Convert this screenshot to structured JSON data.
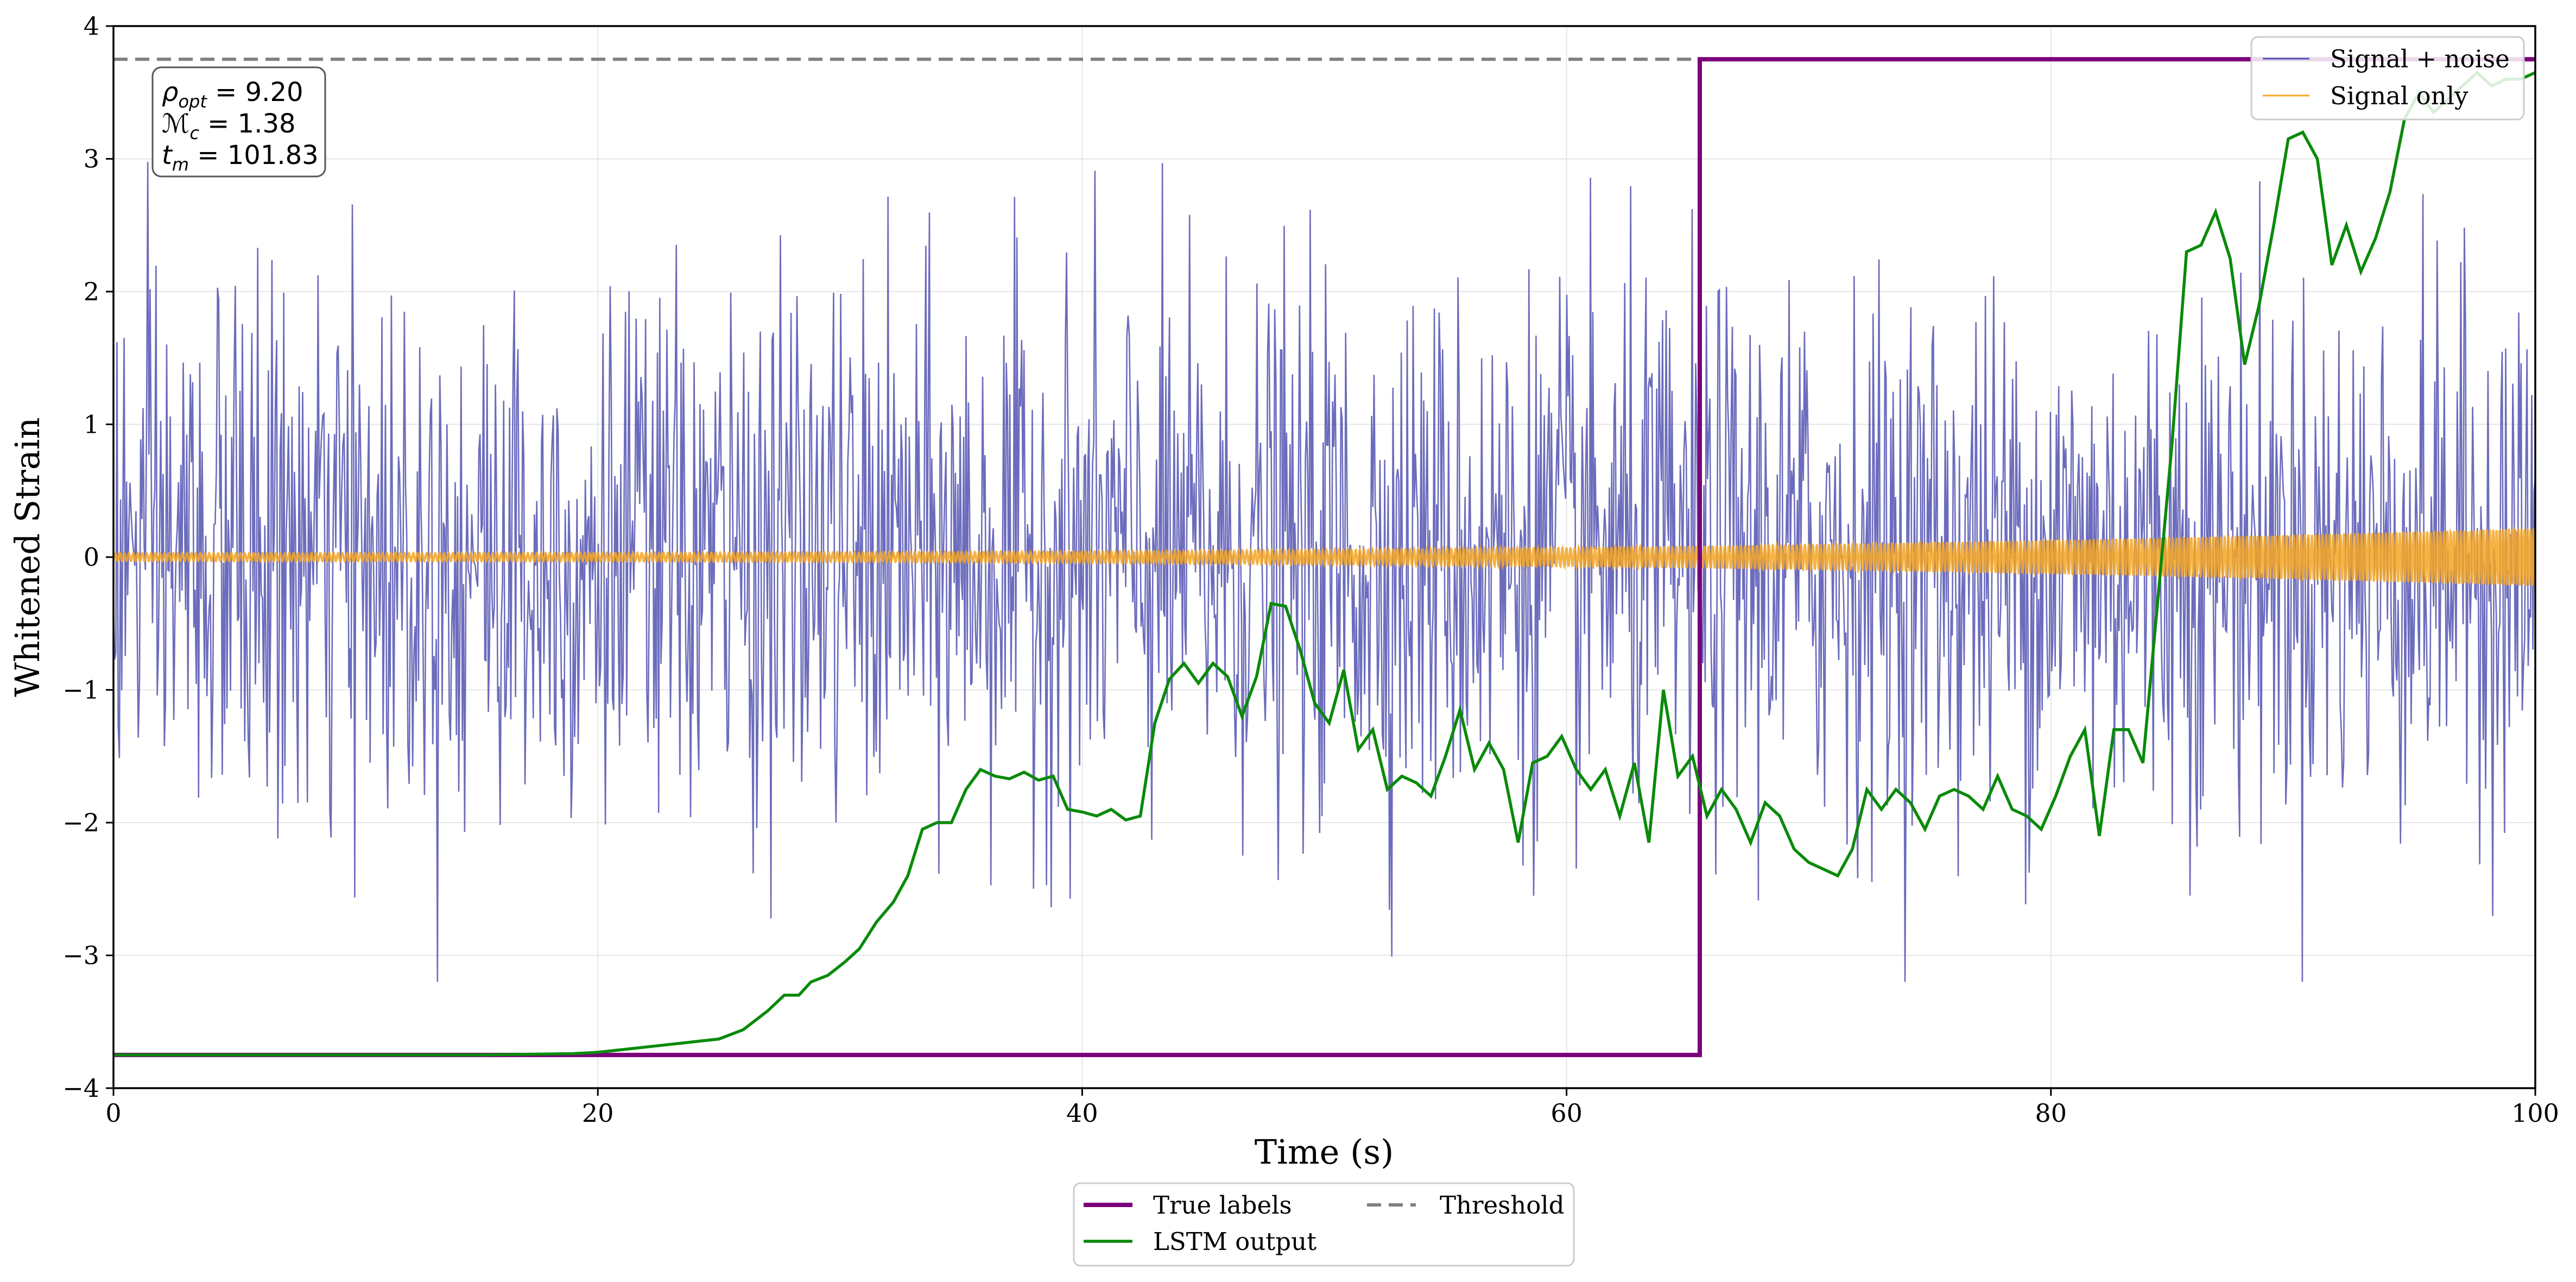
{
  "chart_data": {
    "type": "line",
    "title": "",
    "xlabel": "Time (s)",
    "ylabel": "Whitened Strain",
    "xlim": [
      0,
      100
    ],
    "ylim": [
      -4,
      4
    ],
    "xticks": [
      0,
      20,
      40,
      60,
      80,
      100
    ],
    "yticks": [
      -4,
      -3,
      -2,
      -1,
      0,
      1,
      2,
      3,
      4
    ],
    "xtick_labels": [
      "0",
      "20",
      "40",
      "60",
      "80",
      "100"
    ],
    "ytick_labels": [
      "−4",
      "−3",
      "−2",
      "−1",
      "0",
      "1",
      "2",
      "3",
      "4"
    ],
    "grid": true,
    "threshold": 3.75,
    "info_box": {
      "rho_sym": "ρ",
      "rho_sub": "opt",
      "rho_val": " = 9.20",
      "mc_sym": "ℳ",
      "mc_sub": "c",
      "mc_val": " = 1.38",
      "tm_sym": "t",
      "tm_sub": "m",
      "tm_val": " = 101.83"
    },
    "series": [
      {
        "name": "Signal + noise",
        "color": "#5252b2",
        "description": "Gaussian-like whitened noise, std ~1, range about -3.2 to 4.0",
        "std": 1.0,
        "samples": 2048
      },
      {
        "name": "Signal only",
        "color": "#f5a623",
        "description": "Chirp signal, amplitude grows from ~0.03 to ~0.22, frequency decreasing toward t=100",
        "amp_start": 0.03,
        "amp_end": 0.22
      },
      {
        "name": "True labels",
        "color": "#7b007b",
        "x": [
          0,
          65.5,
          65.5,
          100
        ],
        "y": [
          -3.75,
          -3.75,
          3.75,
          3.75
        ]
      },
      {
        "name": "LSTM output",
        "color": "#0a8a0a",
        "x": [
          0,
          5,
          10,
          15,
          17,
          19,
          20,
          21,
          22,
          23,
          24,
          25,
          26,
          27,
          27.7,
          28.3,
          28.8,
          29.5,
          30.2,
          30.8,
          31.5,
          32.2,
          32.8,
          33.4,
          34,
          34.6,
          35.2,
          35.8,
          36.4,
          37,
          37.6,
          38.2,
          38.8,
          39.4,
          40,
          40.6,
          41.2,
          41.8,
          42.4,
          43,
          43.6,
          44.2,
          44.8,
          45.4,
          46,
          46.6,
          47.2,
          47.8,
          48.4,
          49,
          49.6,
          50.2,
          50.8,
          51.4,
          52,
          52.6,
          53.2,
          53.8,
          54.4,
          55,
          55.6,
          56.2,
          56.8,
          57.4,
          58,
          58.6,
          59.2,
          59.8,
          60.4,
          61,
          61.6,
          62.2,
          62.8,
          63.4,
          64,
          64.6,
          65.2,
          65.8,
          66.4,
          67,
          67.6,
          68.2,
          68.8,
          69.4,
          70,
          70.6,
          71.2,
          71.8,
          72.4,
          73,
          73.6,
          74.2,
          74.8,
          75.4,
          76,
          76.6,
          77.2,
          77.8,
          78.4,
          79,
          79.6,
          80.2,
          80.8,
          81.4,
          82,
          82.6,
          83.2,
          83.8,
          84.4,
          85,
          85.6,
          86.2,
          86.8,
          87.4,
          88,
          88.6,
          89.2,
          89.8,
          90.4,
          91,
          91.6,
          92.2,
          92.8,
          93.4,
          94,
          94.6,
          95.2,
          95.8,
          96.4,
          97,
          97.6,
          98.2,
          98.8,
          99.4,
          100
        ],
        "y": [
          -3.75,
          -3.75,
          -3.75,
          -3.75,
          -3.745,
          -3.74,
          -3.73,
          -3.71,
          -3.69,
          -3.67,
          -3.65,
          -3.63,
          -3.56,
          -3.42,
          -3.3,
          -3.3,
          -3.2,
          -3.15,
          -3.05,
          -2.95,
          -2.75,
          -2.6,
          -2.4,
          -2.05,
          -2.0,
          -2.0,
          -1.75,
          -1.6,
          -1.65,
          -1.67,
          -1.62,
          -1.68,
          -1.65,
          -1.9,
          -1.92,
          -1.95,
          -1.9,
          -1.98,
          -1.95,
          -1.25,
          -0.92,
          -0.8,
          -0.95,
          -0.8,
          -0.9,
          -1.2,
          -0.9,
          -0.35,
          -0.37,
          -0.7,
          -1.1,
          -1.25,
          -0.85,
          -1.45,
          -1.3,
          -1.75,
          -1.65,
          -1.7,
          -1.8,
          -1.5,
          -1.15,
          -1.6,
          -1.4,
          -1.6,
          -2.15,
          -1.55,
          -1.5,
          -1.35,
          -1.6,
          -1.75,
          -1.6,
          -1.95,
          -1.55,
          -2.15,
          -1.0,
          -1.65,
          -1.5,
          -1.95,
          -1.75,
          -1.9,
          -2.15,
          -1.85,
          -1.95,
          -2.2,
          -2.3,
          -2.35,
          -2.4,
          -2.2,
          -1.75,
          -1.9,
          -1.75,
          -1.85,
          -2.05,
          -1.8,
          -1.75,
          -1.8,
          -1.9,
          -1.65,
          -1.9,
          -1.95,
          -2.05,
          -1.8,
          -1.5,
          -1.3,
          -2.1,
          -1.3,
          -1.3,
          -1.55,
          -0.35,
          0.85,
          2.3,
          2.35,
          2.6,
          2.25,
          1.45,
          1.9,
          2.5,
          3.15,
          3.2,
          3.0,
          2.2,
          2.5,
          2.15,
          2.4,
          2.75,
          3.3,
          3.5,
          3.35,
          3.45,
          3.55,
          3.65,
          3.55,
          3.6,
          3.6,
          3.65
        ]
      }
    ],
    "legend_upper": [
      "Signal + noise",
      "Signal only"
    ],
    "legend_lower": [
      "True labels",
      "LSTM output",
      "Threshold"
    ],
    "legend_upper_position": "top-right",
    "legend_lower_position": "below-axes-center"
  }
}
